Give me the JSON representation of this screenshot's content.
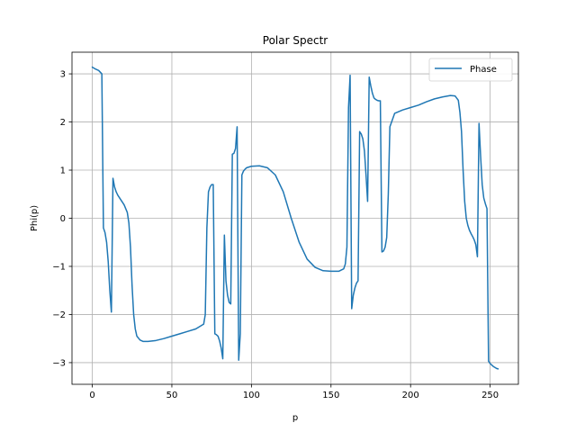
{
  "chart_data": {
    "type": "line",
    "title": "Polar Spectr",
    "xlabel": "p",
    "ylabel": "Phi(p)",
    "xlim": [
      -12.75,
      267.75
    ],
    "ylim": [
      -3.45,
      3.45
    ],
    "xticks": [
      0,
      50,
      100,
      150,
      200,
      250
    ],
    "yticks": [
      -3,
      -2,
      -1,
      0,
      1,
      2,
      3
    ],
    "grid": true,
    "legend_position": "top-right",
    "series": [
      {
        "name": "Phase",
        "color": "#1f77b4",
        "x": [
          0,
          2,
          4,
          6,
          7,
          8,
          9,
          10,
          11,
          12,
          13,
          14,
          15,
          16,
          18,
          20,
          22,
          23,
          24,
          25,
          26,
          27,
          28,
          30,
          32,
          35,
          40,
          45,
          50,
          55,
          60,
          65,
          70,
          71,
          72,
          73,
          74,
          75,
          76,
          77,
          78,
          79,
          80,
          81,
          82,
          83,
          84,
          85,
          86,
          87,
          88,
          89,
          90,
          91,
          92,
          93,
          94,
          95,
          96,
          97,
          100,
          105,
          110,
          115,
          120,
          125,
          130,
          135,
          140,
          145,
          150,
          155,
          158,
          159,
          160,
          161,
          162,
          163,
          164,
          165,
          166,
          167,
          168,
          169,
          170,
          171,
          172,
          173,
          174,
          175,
          176,
          177,
          178,
          179,
          180,
          181,
          182,
          183,
          184,
          185,
          186,
          187,
          190,
          195,
          200,
          205,
          210,
          215,
          220,
          225,
          228,
          230,
          231,
          232,
          233,
          234,
          235,
          236,
          237,
          238,
          239,
          240,
          241,
          242,
          243,
          244,
          245,
          246,
          247,
          248,
          249,
          250,
          251,
          252,
          253,
          254,
          255
        ],
        "y": [
          3.14,
          3.1,
          3.07,
          3.0,
          -0.2,
          -0.3,
          -0.5,
          -0.9,
          -1.5,
          -1.95,
          0.83,
          0.65,
          0.55,
          0.48,
          0.38,
          0.28,
          0.12,
          -0.1,
          -0.6,
          -1.4,
          -2.0,
          -2.3,
          -2.45,
          -2.53,
          -2.56,
          -2.56,
          -2.54,
          -2.5,
          -2.45,
          -2.4,
          -2.35,
          -2.3,
          -2.2,
          -2.0,
          -0.2,
          0.55,
          0.65,
          0.7,
          0.7,
          -2.4,
          -2.42,
          -2.45,
          -2.55,
          -2.7,
          -2.92,
          -0.35,
          -1.3,
          -1.6,
          -1.75,
          -1.78,
          1.33,
          1.35,
          1.45,
          1.9,
          -2.95,
          -2.4,
          0.9,
          0.98,
          1.02,
          1.05,
          1.08,
          1.09,
          1.05,
          0.9,
          0.55,
          0.0,
          -0.5,
          -0.85,
          -1.02,
          -1.09,
          -1.1,
          -1.1,
          -1.05,
          -0.95,
          -0.6,
          2.3,
          2.97,
          -1.88,
          -1.6,
          -1.45,
          -1.35,
          -1.3,
          1.8,
          1.75,
          1.65,
          1.4,
          0.9,
          0.35,
          2.93,
          2.75,
          2.6,
          2.5,
          2.47,
          2.45,
          2.44,
          2.44,
          -0.7,
          -0.68,
          -0.6,
          -0.4,
          0.5,
          1.9,
          2.18,
          2.25,
          2.3,
          2.35,
          2.42,
          2.48,
          2.52,
          2.55,
          2.54,
          2.45,
          2.2,
          1.8,
          1.0,
          0.35,
          0.0,
          -0.15,
          -0.25,
          -0.32,
          -0.38,
          -0.45,
          -0.55,
          -0.8,
          1.97,
          1.3,
          0.7,
          0.42,
          0.3,
          0.2,
          -2.97,
          -3.02,
          -3.05,
          -3.08,
          -3.1,
          -3.12,
          -3.13
        ]
      }
    ]
  }
}
